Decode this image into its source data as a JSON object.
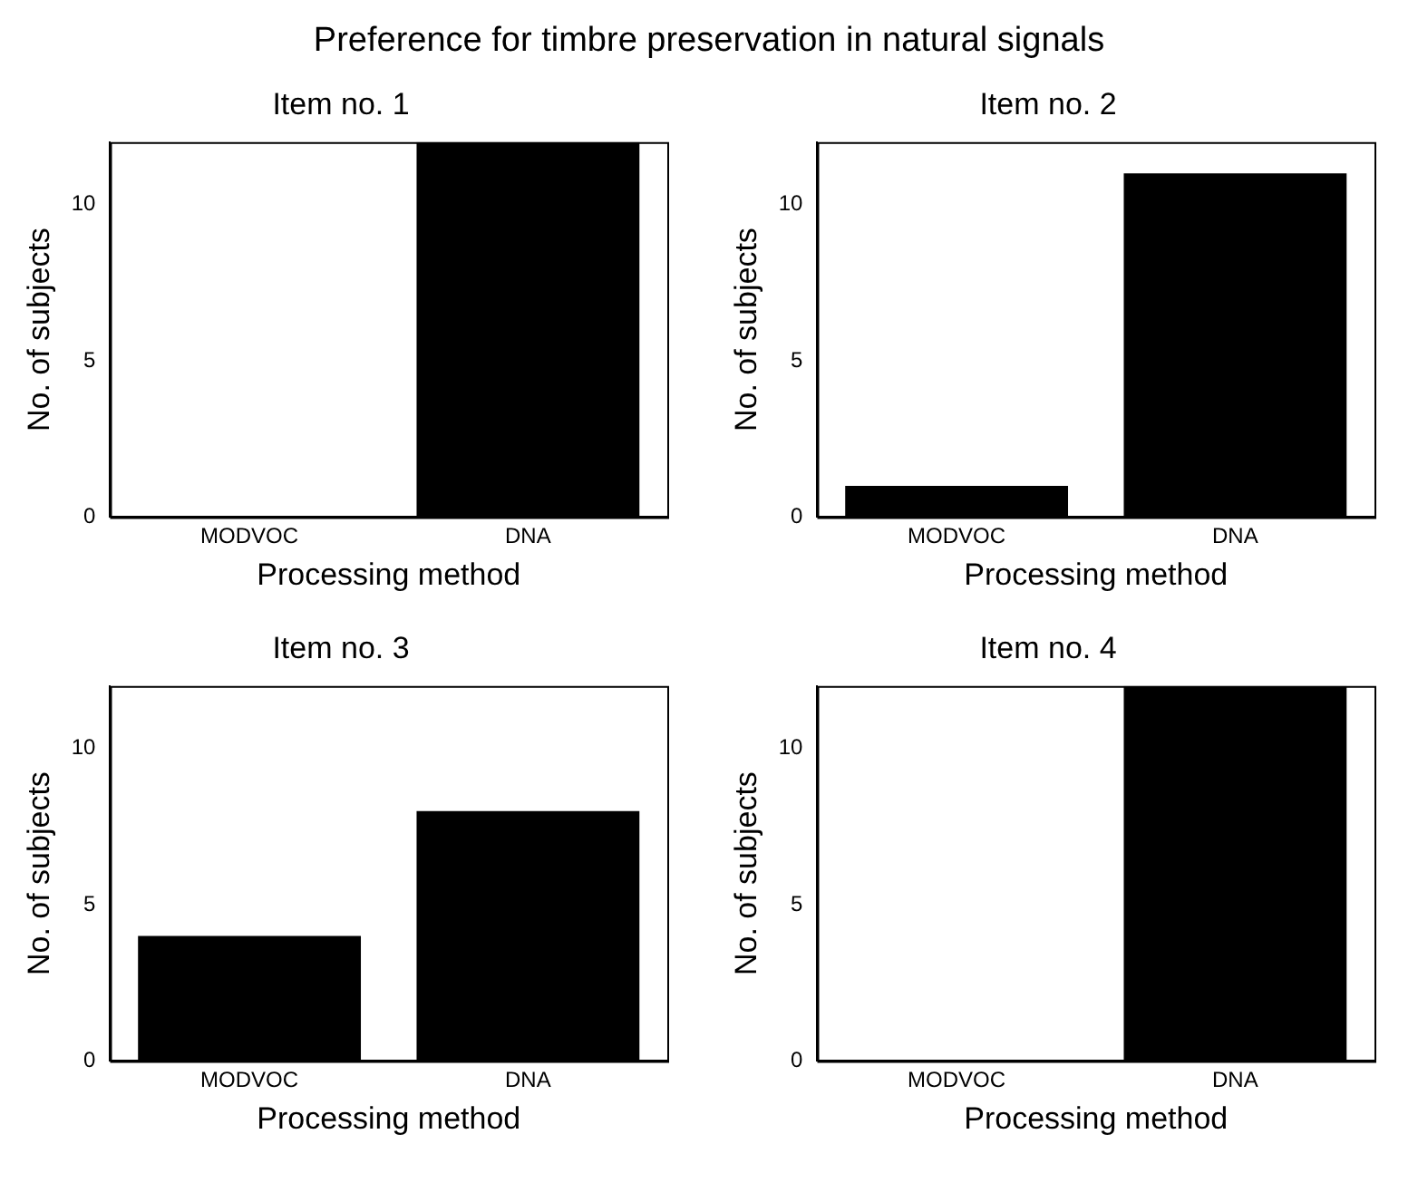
{
  "chart_data": [
    {
      "type": "bar",
      "annotations": [
        "Preference for timbre preservation in natural signals"
      ],
      "title": "Item no. 1",
      "xlabel": "Processing method",
      "ylabel": "No. of subjects",
      "categories": [
        "MODVOC",
        "DNA"
      ],
      "values": [
        0,
        12
      ],
      "color": "#000000",
      "ylim": [
        0,
        12
      ],
      "yticks": [
        0,
        5,
        10
      ],
      "grid": false,
      "legend": false
    },
    {
      "type": "bar",
      "title": "Item no. 2",
      "xlabel": "Processing method",
      "ylabel": "No. of subjects",
      "categories": [
        "MODVOC",
        "DNA"
      ],
      "values": [
        1,
        11
      ],
      "color": "#000000",
      "ylim": [
        0,
        12
      ],
      "yticks": [
        0,
        5,
        10
      ],
      "grid": false,
      "legend": false
    },
    {
      "type": "bar",
      "title": "Item no. 3",
      "xlabel": "Processing method",
      "ylabel": "No. of subjects",
      "categories": [
        "MODVOC",
        "DNA"
      ],
      "values": [
        4,
        8
      ],
      "color": "#000000",
      "ylim": [
        0,
        12
      ],
      "yticks": [
        0,
        5,
        10
      ],
      "grid": false,
      "legend": false
    },
    {
      "type": "bar",
      "title": "Item no. 4",
      "xlabel": "Processing method",
      "ylabel": "No. of subjects",
      "categories": [
        "MODVOC",
        "DNA"
      ],
      "values": [
        0,
        12
      ],
      "color": "#000000",
      "ylim": [
        0,
        12
      ],
      "yticks": [
        0,
        5,
        10
      ],
      "grid": false,
      "legend": false
    }
  ]
}
